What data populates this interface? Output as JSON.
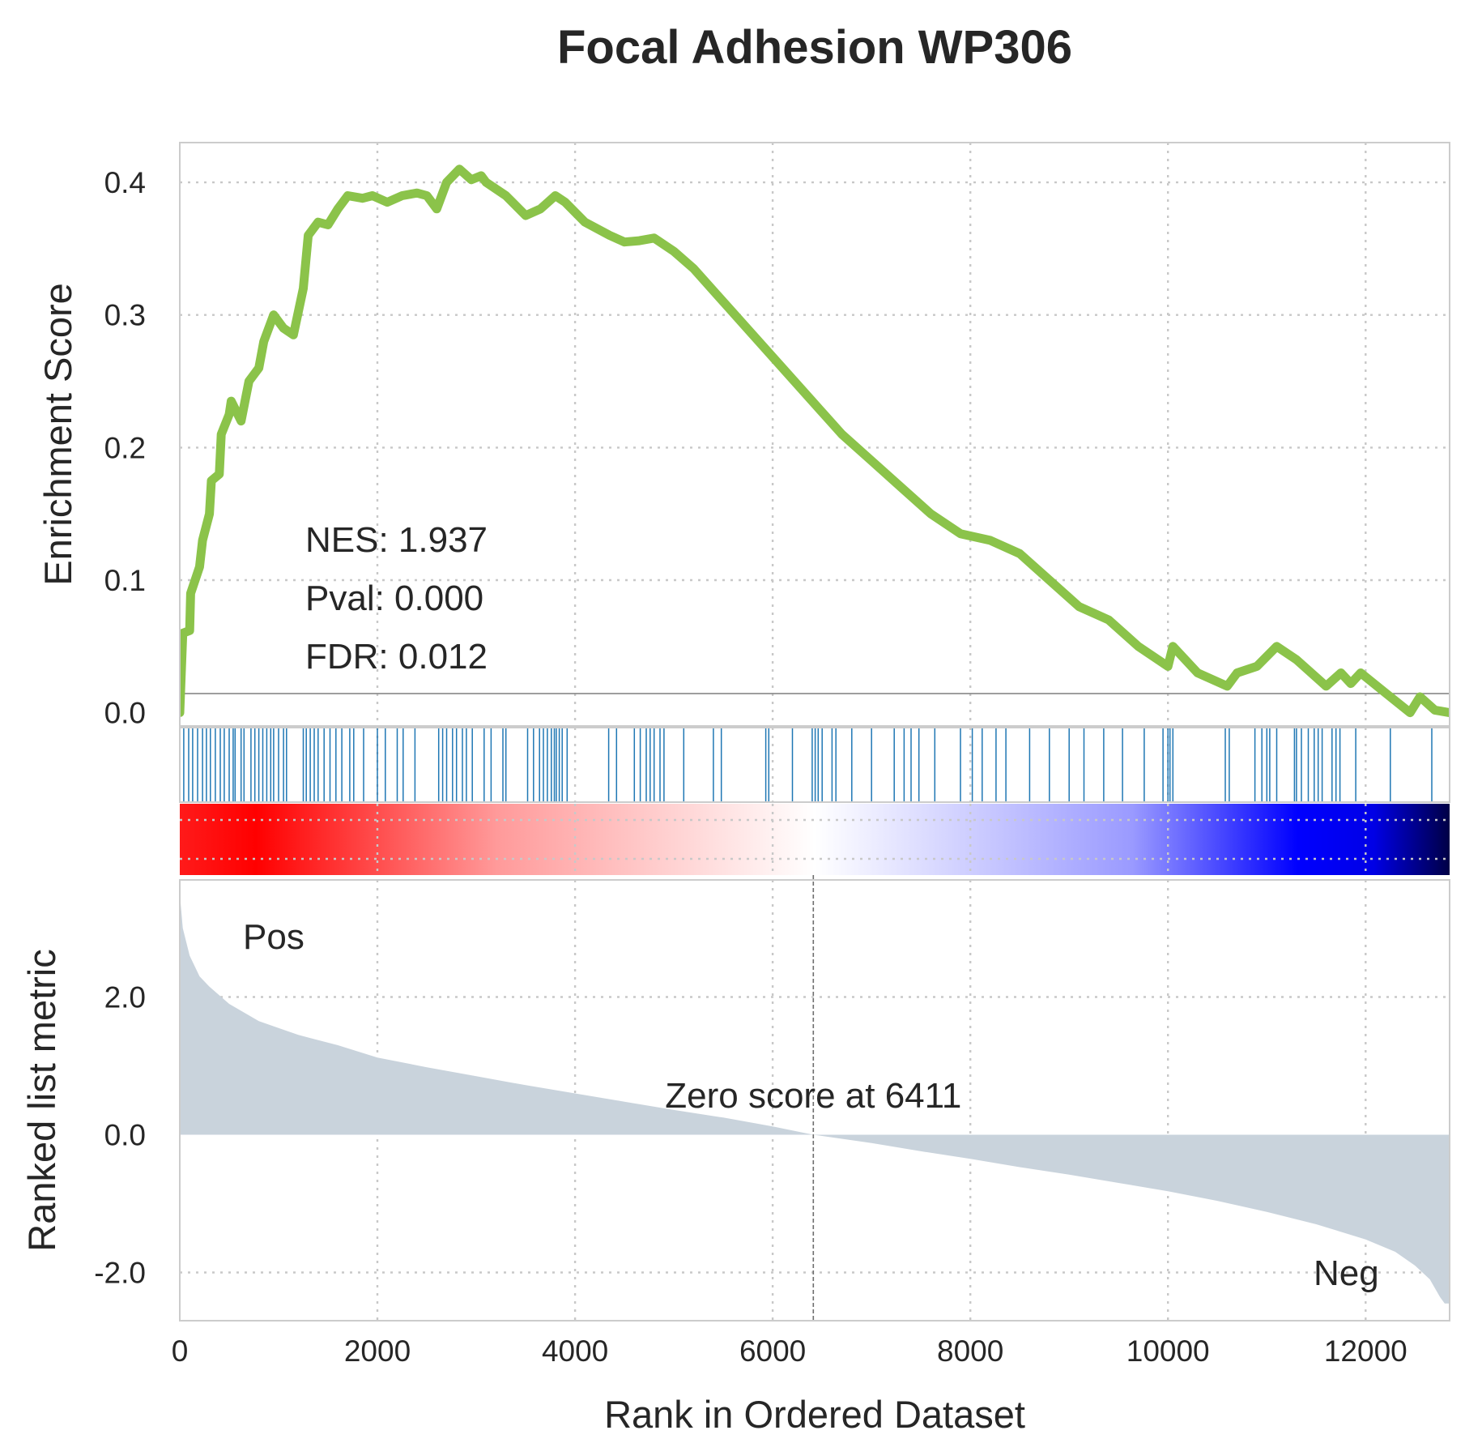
{
  "chart_data": {
    "type": "line",
    "title": "Focal Adhesion WP306",
    "xlabel": "Rank in Ordered Dataset",
    "xlim": [
      0,
      12850
    ],
    "x_ticks": [
      "0",
      "2000",
      "4000",
      "6000",
      "8000",
      "10000",
      "12000"
    ],
    "x_tick_values": [
      0,
      2000,
      4000,
      6000,
      8000,
      10000,
      12000
    ],
    "grid": true,
    "line_color": "#8bc34a",
    "hit_color": "#1f77b4",
    "metric_fill_color": "#c9d3dc",
    "enrichment": {
      "ylabel": "Enrichment Score",
      "ylim": [
        -0.01,
        0.43
      ],
      "y_ticks": [
        "0.0",
        "0.1",
        "0.2",
        "0.3",
        "0.4"
      ],
      "y_tick_values": [
        0,
        0.1,
        0.2,
        0.3,
        0.4
      ],
      "stats": {
        "nes": "NES: 1.937",
        "pval": "Pval: 0.000",
        "fdr": "FDR: 0.012"
      },
      "points": [
        [
          0,
          0.0
        ],
        [
          30,
          0.06
        ],
        [
          100,
          0.062
        ],
        [
          110,
          0.09
        ],
        [
          200,
          0.11
        ],
        [
          230,
          0.13
        ],
        [
          300,
          0.15
        ],
        [
          320,
          0.175
        ],
        [
          400,
          0.18
        ],
        [
          420,
          0.21
        ],
        [
          500,
          0.225
        ],
        [
          520,
          0.235
        ],
        [
          620,
          0.22
        ],
        [
          700,
          0.25
        ],
        [
          800,
          0.26
        ],
        [
          850,
          0.28
        ],
        [
          950,
          0.3
        ],
        [
          1050,
          0.29
        ],
        [
          1150,
          0.285
        ],
        [
          1250,
          0.32
        ],
        [
          1300,
          0.36
        ],
        [
          1400,
          0.37
        ],
        [
          1500,
          0.368
        ],
        [
          1600,
          0.38
        ],
        [
          1700,
          0.39
        ],
        [
          1850,
          0.388
        ],
        [
          1950,
          0.39
        ],
        [
          2100,
          0.385
        ],
        [
          2250,
          0.39
        ],
        [
          2400,
          0.392
        ],
        [
          2500,
          0.39
        ],
        [
          2600,
          0.38
        ],
        [
          2700,
          0.4
        ],
        [
          2830,
          0.41
        ],
        [
          2950,
          0.402
        ],
        [
          3050,
          0.405
        ],
        [
          3100,
          0.4
        ],
        [
          3300,
          0.39
        ],
        [
          3500,
          0.375
        ],
        [
          3650,
          0.38
        ],
        [
          3800,
          0.39
        ],
        [
          3900,
          0.385
        ],
        [
          4100,
          0.37
        ],
        [
          4350,
          0.36
        ],
        [
          4500,
          0.355
        ],
        [
          4650,
          0.356
        ],
        [
          4800,
          0.358
        ],
        [
          5000,
          0.348
        ],
        [
          5200,
          0.335
        ],
        [
          5500,
          0.31
        ],
        [
          5800,
          0.285
        ],
        [
          6100,
          0.26
        ],
        [
          6400,
          0.235
        ],
        [
          6700,
          0.21
        ],
        [
          7000,
          0.19
        ],
        [
          7300,
          0.17
        ],
        [
          7600,
          0.15
        ],
        [
          7900,
          0.135
        ],
        [
          8200,
          0.13
        ],
        [
          8500,
          0.12
        ],
        [
          8800,
          0.1
        ],
        [
          9100,
          0.08
        ],
        [
          9400,
          0.07
        ],
        [
          9700,
          0.05
        ],
        [
          10000,
          0.035
        ],
        [
          10050,
          0.05
        ],
        [
          10300,
          0.03
        ],
        [
          10600,
          0.02
        ],
        [
          10700,
          0.03
        ],
        [
          10900,
          0.035
        ],
        [
          11100,
          0.05
        ],
        [
          11300,
          0.04
        ],
        [
          11600,
          0.02
        ],
        [
          11750,
          0.03
        ],
        [
          11850,
          0.022
        ],
        [
          11950,
          0.03
        ],
        [
          12200,
          0.015
        ],
        [
          12450,
          0.0
        ],
        [
          12550,
          0.012
        ],
        [
          12700,
          0.002
        ],
        [
          12850,
          0.0
        ]
      ]
    },
    "hits": [
      40,
      90,
      130,
      180,
      230,
      270,
      310,
      360,
      410,
      450,
      500,
      540,
      560,
      620,
      650,
      720,
      760,
      800,
      840,
      880,
      920,
      950,
      1000,
      1050,
      1080,
      1250,
      1280,
      1320,
      1360,
      1400,
      1460,
      1520,
      1580,
      1640,
      1720,
      1760,
      1860,
      2000,
      2080,
      2200,
      2260,
      2380,
      2620,
      2660,
      2700,
      2760,
      2800,
      2860,
      2900,
      2960,
      3080,
      3150,
      3270,
      3300,
      3520,
      3580,
      3640,
      3680,
      3720,
      3760,
      3790,
      3810,
      3840,
      3870,
      3920,
      4340,
      4420,
      4600,
      4660,
      4720,
      4760,
      4800,
      4860,
      4900,
      5100,
      5400,
      5480,
      5930,
      5960,
      6200,
      6400,
      6430,
      6460,
      6500,
      6600,
      6640,
      6800,
      7000,
      7230,
      7330,
      7400,
      7480,
      7640,
      7900,
      8020,
      8120,
      8260,
      8360,
      8600,
      8800,
      9000,
      9150,
      9350,
      9540,
      9760,
      9950,
      10000,
      10020,
      10050,
      10580,
      10620,
      10880,
      10950,
      11000,
      11030,
      11100,
      11280,
      11300,
      11350,
      11420,
      11480,
      11520,
      11560,
      11660,
      11700,
      11740,
      11900,
      12250,
      12670
    ],
    "gradient": {
      "stops": [
        {
          "offset": 0.0,
          "color": "#ff1a1a"
        },
        {
          "offset": 0.06,
          "color": "#ff0000"
        },
        {
          "offset": 0.25,
          "color": "#ff9a9a"
        },
        {
          "offset": 0.5,
          "color": "#ffffff"
        },
        {
          "offset": 0.75,
          "color": "#9a9aff"
        },
        {
          "offset": 0.88,
          "color": "#0000ff"
        },
        {
          "offset": 0.94,
          "color": "#0000e6"
        },
        {
          "offset": 1.0,
          "color": "#000045"
        }
      ]
    },
    "metric": {
      "ylabel": "Ranked list metric",
      "ylim": [
        -2.7,
        3.7
      ],
      "y_ticks": [
        "-2.0",
        "0.0",
        "2.0"
      ],
      "y_tick_values": [
        -2,
        0,
        2
      ],
      "pos_label": "Pos",
      "neg_label": "Neg",
      "pos_color": "#ff0000",
      "neg_color": "#0000ff",
      "zero_label": "Zero score at 6411",
      "zero_rank": 6411,
      "points": [
        [
          0,
          3.5
        ],
        [
          30,
          3.0
        ],
        [
          100,
          2.6
        ],
        [
          200,
          2.3
        ],
        [
          300,
          2.15
        ],
        [
          500,
          1.9
        ],
        [
          800,
          1.65
        ],
        [
          1200,
          1.45
        ],
        [
          1600,
          1.3
        ],
        [
          2000,
          1.12
        ],
        [
          2500,
          0.98
        ],
        [
          3000,
          0.85
        ],
        [
          3500,
          0.72
        ],
        [
          4000,
          0.6
        ],
        [
          4500,
          0.48
        ],
        [
          5000,
          0.36
        ],
        [
          5500,
          0.25
        ],
        [
          6000,
          0.12
        ],
        [
          6411,
          0.0
        ],
        [
          7000,
          -0.12
        ],
        [
          7500,
          -0.24
        ],
        [
          8000,
          -0.35
        ],
        [
          8500,
          -0.47
        ],
        [
          9000,
          -0.58
        ],
        [
          9500,
          -0.7
        ],
        [
          10000,
          -0.82
        ],
        [
          10500,
          -0.96
        ],
        [
          11000,
          -1.12
        ],
        [
          11500,
          -1.3
        ],
        [
          12000,
          -1.52
        ],
        [
          12300,
          -1.7
        ],
        [
          12500,
          -1.9
        ],
        [
          12650,
          -2.1
        ],
        [
          12750,
          -2.35
        ],
        [
          12800,
          -2.45
        ],
        [
          12850,
          -2.45
        ]
      ]
    }
  }
}
